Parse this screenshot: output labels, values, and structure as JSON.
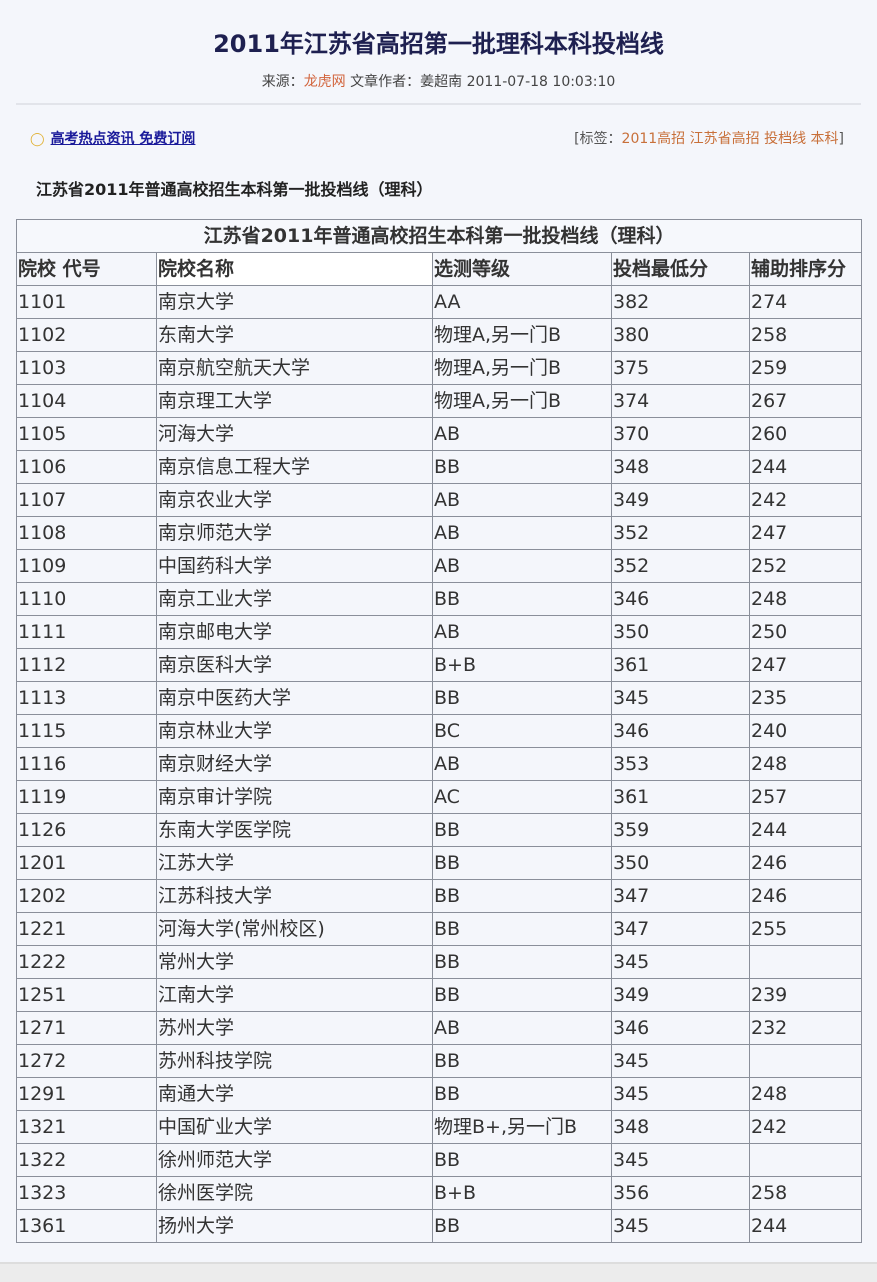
{
  "article": {
    "title": "2011年江苏省高招第一批理科本科投档线",
    "source_label": "来源：",
    "source": "龙虎网",
    "author_label": "文章作者：",
    "author": "姜超南",
    "datetime": "2011-07-18 10:03:10"
  },
  "subscribe": {
    "icon": "lightbulb-icon",
    "link": "高考热点资讯 免费订阅"
  },
  "tags": {
    "open": "[标签：",
    "items": [
      "2011高招",
      "江苏省高招",
      "投档线",
      "本科"
    ],
    "close": "]"
  },
  "heading": "江苏省2011年普通高校招生本科第一批投档线（理科）",
  "table": {
    "caption": "江苏省2011年普通高校招生本科第一批投档线（理科）",
    "columns": [
      "院校 代号",
      "院校名称",
      "选测等级",
      "投档最低分",
      "辅助排序分"
    ],
    "rows": [
      [
        "1101",
        "南京大学",
        "AA",
        "382",
        "274"
      ],
      [
        "1102",
        "东南大学",
        "物理A,另一门B",
        "380",
        "258"
      ],
      [
        "1103",
        "南京航空航天大学",
        "物理A,另一门B",
        "375",
        "259"
      ],
      [
        "1104",
        "南京理工大学",
        "物理A,另一门B",
        "374",
        "267"
      ],
      [
        "1105",
        "河海大学",
        "AB",
        "370",
        "260"
      ],
      [
        "1106",
        "南京信息工程大学",
        "BB",
        "348",
        "244"
      ],
      [
        "1107",
        "南京农业大学",
        "AB",
        "349",
        "242"
      ],
      [
        "1108",
        "南京师范大学",
        "AB",
        "352",
        "247"
      ],
      [
        "1109",
        "中国药科大学",
        "AB",
        "352",
        "252"
      ],
      [
        "1110",
        "南京工业大学",
        "BB",
        "346",
        "248"
      ],
      [
        "1111",
        "南京邮电大学",
        "AB",
        "350",
        "250"
      ],
      [
        "1112",
        "南京医科大学",
        "B+B",
        "361",
        "247"
      ],
      [
        "1113",
        "南京中医药大学",
        "BB",
        "345",
        "235"
      ],
      [
        "1115",
        "南京林业大学",
        "BC",
        "346",
        "240"
      ],
      [
        "1116",
        "南京财经大学",
        "AB",
        "353",
        "248"
      ],
      [
        "1119",
        "南京审计学院",
        "AC",
        "361",
        "257"
      ],
      [
        "1126",
        "东南大学医学院",
        "BB",
        "359",
        "244"
      ],
      [
        "1201",
        "江苏大学",
        "BB",
        "350",
        "246"
      ],
      [
        "1202",
        "江苏科技大学",
        "BB",
        "347",
        "246"
      ],
      [
        "1221",
        "河海大学(常州校区)",
        "BB",
        "347",
        "255"
      ],
      [
        "1222",
        "常州大学",
        "BB",
        "345",
        ""
      ],
      [
        "1251",
        "江南大学",
        "BB",
        "349",
        "239"
      ],
      [
        "1271",
        "苏州大学",
        "AB",
        "346",
        "232"
      ],
      [
        "1272",
        "苏州科技学院",
        "BB",
        "345",
        ""
      ],
      [
        "1291",
        "南通大学",
        "BB",
        "345",
        "248"
      ],
      [
        "1321",
        "中国矿业大学",
        "物理B+,另一门B",
        "348",
        "242"
      ],
      [
        "1322",
        "徐州师范大学",
        "BB",
        "345",
        ""
      ],
      [
        "1323",
        "徐州医学院",
        "B+B",
        "356",
        "258"
      ],
      [
        "1361",
        "扬州大学",
        "BB",
        "345",
        "244"
      ]
    ]
  }
}
